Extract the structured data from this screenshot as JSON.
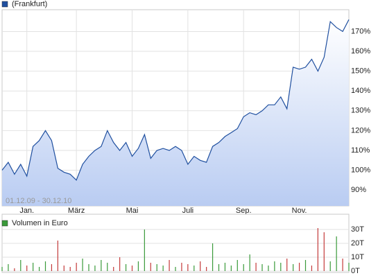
{
  "chart_data": [
    {
      "type": "line",
      "legend": "(Frankfurt)",
      "annotation": "01.12.09 - 30.12.10",
      "color": "#1f4f9f",
      "grid": true,
      "categories": [
        null,
        null,
        null,
        null,
        "Jan.",
        null,
        null,
        null,
        null,
        null,
        null,
        null,
        "März",
        null,
        null,
        null,
        null,
        null,
        null,
        null,
        null,
        "Mai",
        null,
        null,
        null,
        null,
        null,
        null,
        null,
        null,
        "Juli",
        null,
        null,
        null,
        null,
        null,
        null,
        null,
        null,
        "Sep.",
        null,
        null,
        null,
        null,
        null,
        null,
        null,
        null,
        "Nov.",
        null,
        null,
        null,
        null,
        null,
        null,
        null,
        null
      ],
      "values": [
        100,
        104,
        98,
        103,
        97,
        112,
        115,
        120,
        115,
        101,
        99,
        98,
        95,
        103,
        107,
        110,
        112,
        120,
        114,
        110,
        114,
        107,
        111,
        118,
        106,
        110,
        111,
        110,
        112,
        110,
        103,
        107,
        105,
        104,
        112,
        114,
        117,
        119,
        121,
        127,
        129,
        128,
        130,
        133,
        133,
        137,
        131,
        152,
        151,
        152,
        156,
        150,
        157,
        175,
        172,
        170,
        176
      ],
      "ylim": [
        82,
        181
      ],
      "yticks": [
        {
          "value": 90,
          "label": "90%"
        },
        {
          "value": 100,
          "label": "100%"
        },
        {
          "value": 110,
          "label": "110%"
        },
        {
          "value": 120,
          "label": "120%"
        },
        {
          "value": 130,
          "label": "130%"
        },
        {
          "value": 140,
          "label": "140%"
        },
        {
          "value": 150,
          "label": "150%"
        },
        {
          "value": 160,
          "label": "160%"
        },
        {
          "value": 170,
          "label": "170%"
        }
      ]
    },
    {
      "type": "bar",
      "legend": "Volumen in Euro",
      "color": "#3a9a3a",
      "grid": true,
      "values": [
        3,
        5,
        2,
        8,
        4,
        6,
        3,
        7,
        5,
        22,
        4,
        3,
        6,
        9,
        5,
        4,
        8,
        6,
        3,
        10,
        5,
        4,
        7,
        30,
        6,
        5,
        4,
        8,
        3,
        6,
        5,
        4,
        7,
        3,
        20,
        5,
        6,
        4,
        8,
        5,
        12,
        6,
        5,
        4,
        7,
        6,
        9,
        5,
        6,
        8,
        4,
        31,
        28,
        7,
        25,
        9,
        6
      ],
      "colors": [
        "#3a9a3a",
        "#3a9a3a",
        "#c43a3a",
        "#3a9a3a",
        "#c43a3a",
        "#3a9a3a",
        "#3a9a3a",
        "#3a9a3a",
        "#c43a3a",
        "#c43a3a",
        "#c43a3a",
        "#c43a3a",
        "#c43a3a",
        "#3a9a3a",
        "#3a9a3a",
        "#3a9a3a",
        "#3a9a3a",
        "#3a9a3a",
        "#c43a3a",
        "#c43a3a",
        "#3a9a3a",
        "#c43a3a",
        "#3a9a3a",
        "#3a9a3a",
        "#c43a3a",
        "#3a9a3a",
        "#3a9a3a",
        "#c43a3a",
        "#3a9a3a",
        "#c43a3a",
        "#c43a3a",
        "#3a9a3a",
        "#c43a3a",
        "#c43a3a",
        "#3a9a3a",
        "#3a9a3a",
        "#3a9a3a",
        "#3a9a3a",
        "#3a9a3a",
        "#3a9a3a",
        "#3a9a3a",
        "#c43a3a",
        "#3a9a3a",
        "#3a9a3a",
        "#3a9a3a",
        "#3a9a3a",
        "#c43a3a",
        "#3a9a3a",
        "#c43a3a",
        "#3a9a3a",
        "#c43a3a",
        "#c43a3a",
        "#c43a3a",
        "#3a9a3a",
        "#3a9a3a",
        "#c43a3a",
        "#3a9a3a"
      ],
      "ylim": [
        0,
        37
      ],
      "yticks": [
        {
          "value": 0,
          "label": "0T"
        },
        {
          "value": 10,
          "label": "10T"
        },
        {
          "value": 20,
          "label": "20T"
        },
        {
          "value": 30,
          "label": "30T"
        }
      ]
    }
  ]
}
